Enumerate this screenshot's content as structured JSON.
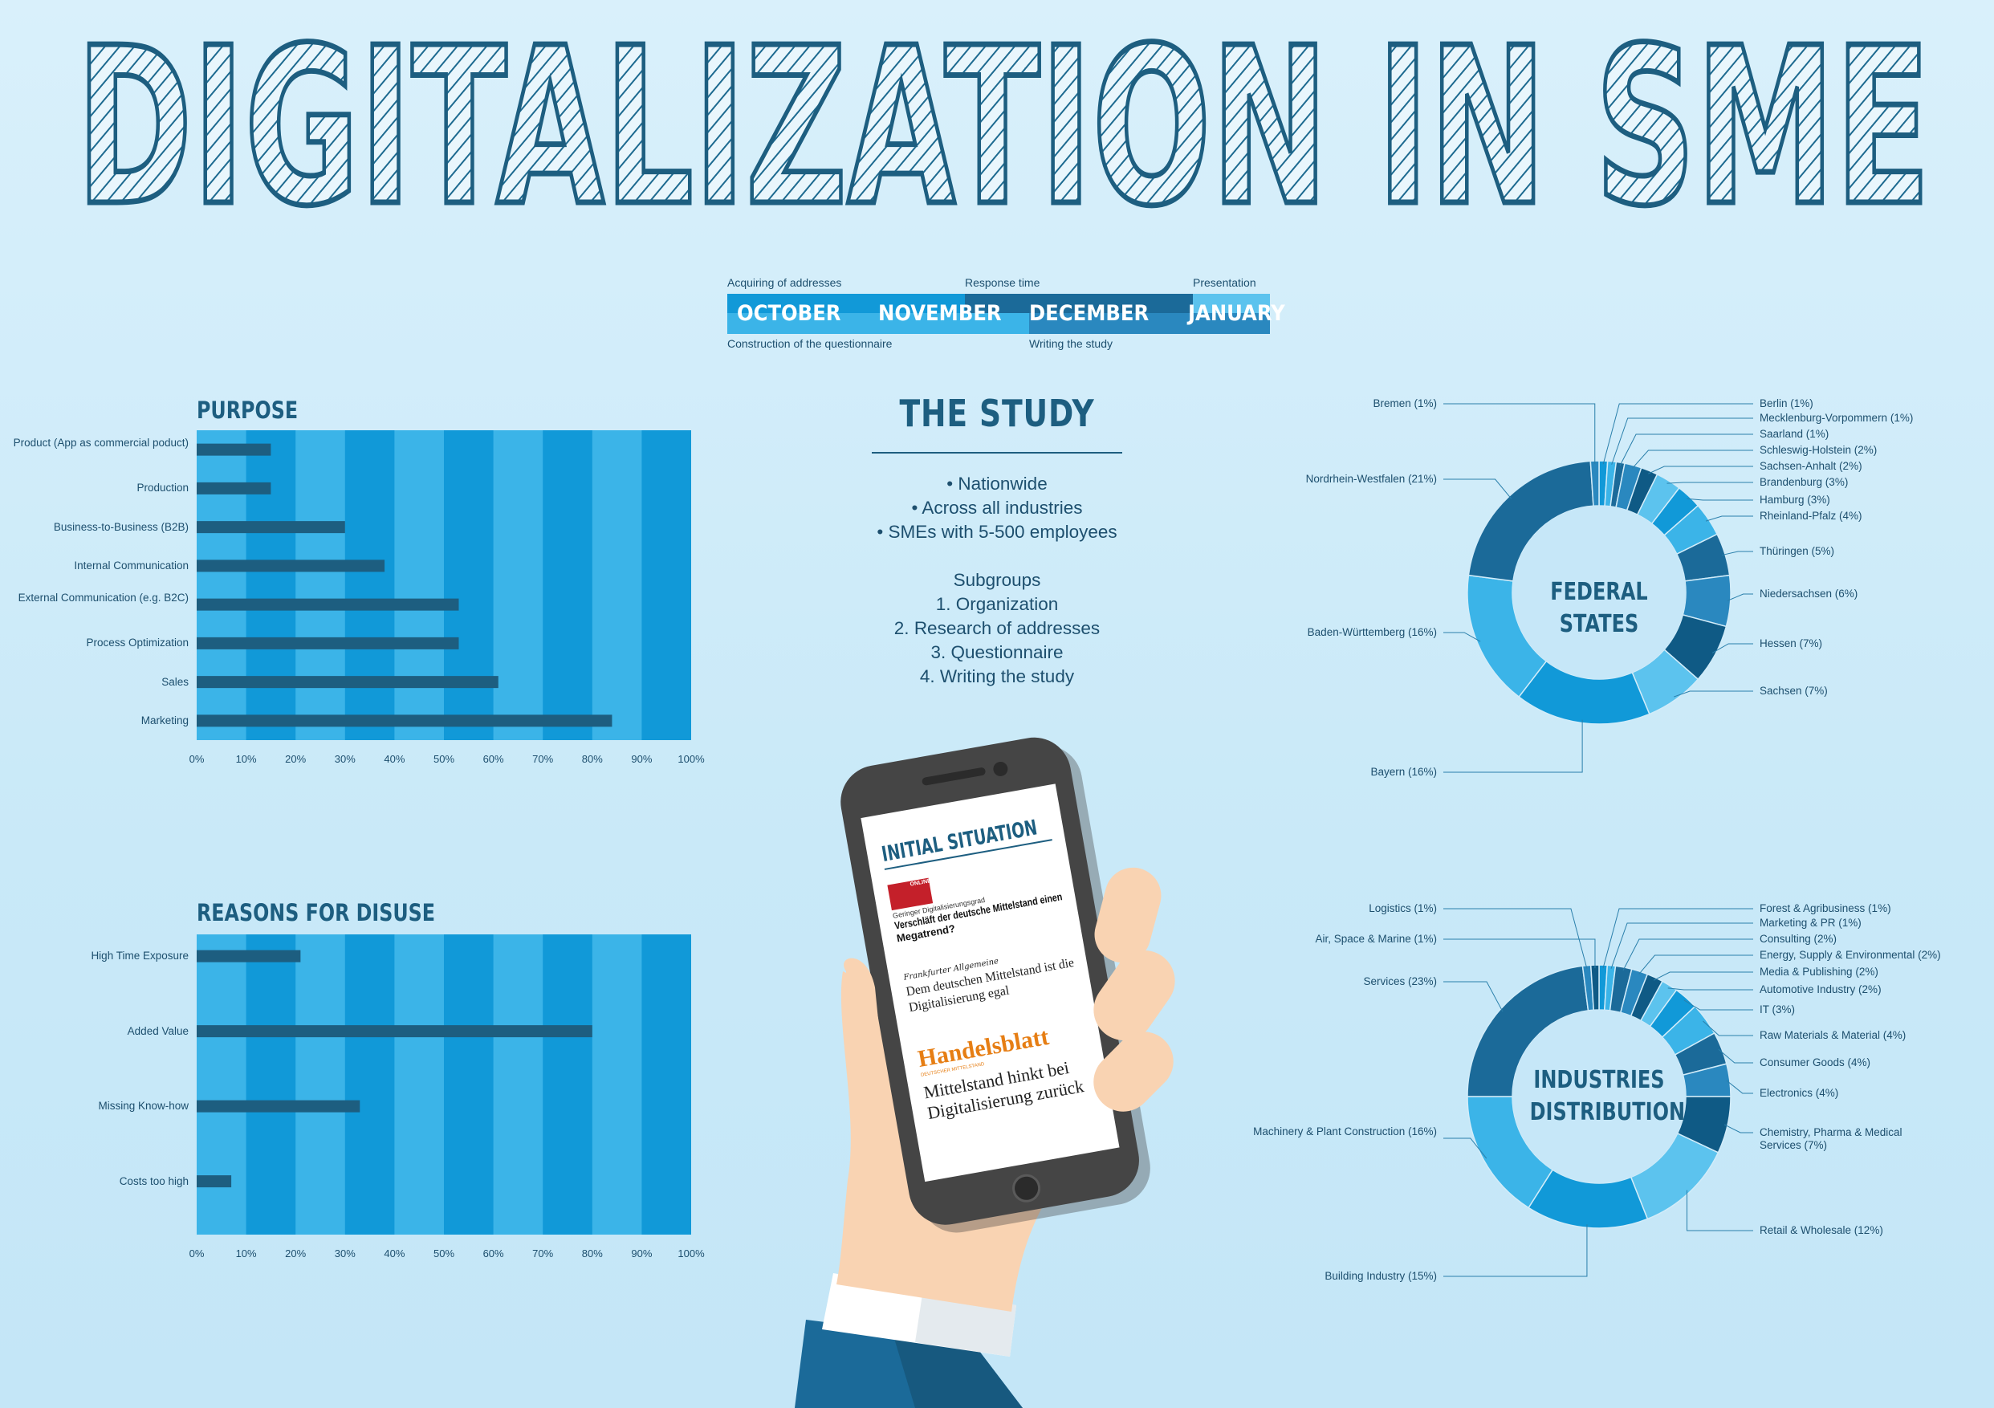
{
  "title": "DIGITALIZATION IN SME",
  "timeline": {
    "months": [
      "OCTOBER",
      "NOVEMBER",
      "DECEMBER",
      "JANUARY"
    ],
    "phases_top": [
      "Acquiring of addresses",
      "Response time",
      "Presentation"
    ],
    "phases_bottom": [
      "Construction of the questionnaire",
      "Writing the study"
    ]
  },
  "study": {
    "title": "THE STUDY",
    "bullets": [
      "• Nationwide",
      "• Across all industries",
      "• SMEs with 5-500 employees"
    ],
    "subgroups_title": "Subgroups",
    "subgroups": [
      "1. Organization",
      "2. Research of addresses",
      "3. Questionnaire",
      "4. Writing the study"
    ]
  },
  "phone": {
    "heading": "INITIAL SITUATION",
    "news1_source": "ONLINE",
    "news1_kicker": "Geringer Digitalisierungsgrad",
    "news1_headline_1": "Verschläft der deutsche Mittelstand einen",
    "news1_headline_2": "Megatrend?",
    "news2_source": "Frankfurter Allgemeine",
    "news2_headline_1": "Dem deutschen Mittelstand ist die",
    "news2_headline_2": "Digitalisierung egal",
    "news3_source": "Handelsblatt",
    "news3_sub": "DEUTSCHER MITTELSTAND",
    "news3_headline_1": "Mittelstand hinkt bei",
    "news3_headline_2": "Digitalisierung zurück"
  },
  "colors": {
    "title_stroke": "#1d5e80",
    "bar": "#1d5e80",
    "band_light": "#3bb4e8",
    "band_dark": "#1199d8",
    "donut_palette": [
      "#1199d8",
      "#3bb4e8",
      "#1b6a99",
      "#2a88bf",
      "#0f5a85",
      "#5cc3ee"
    ]
  },
  "chart_data": [
    {
      "type": "bar",
      "orientation": "horizontal",
      "title": "PURPOSE",
      "categories": [
        "Product (App as commercial poduct)",
        "Production",
        "Business-to-Business (B2B)",
        "Internal Communication",
        "External Communication (e.g. B2C)",
        "Process Optimization",
        "Sales",
        "Marketing"
      ],
      "values": [
        15,
        15,
        30,
        38,
        53,
        53,
        61,
        84
      ],
      "xlim": [
        0,
        100
      ],
      "xticks": [
        "0%",
        "10%",
        "20%",
        "30%",
        "40%",
        "50%",
        "60%",
        "70%",
        "80%",
        "90%",
        "100%"
      ]
    },
    {
      "type": "bar",
      "orientation": "horizontal",
      "title": "REASONS FOR DISUSE",
      "categories": [
        "High Time Exposure",
        "Added Value",
        "Missing Know-how",
        "Costs too high"
      ],
      "values": [
        21,
        80,
        33,
        7
      ],
      "xlim": [
        0,
        100
      ],
      "xticks": [
        "0%",
        "10%",
        "20%",
        "30%",
        "40%",
        "50%",
        "60%",
        "70%",
        "80%",
        "90%",
        "100%"
      ]
    },
    {
      "type": "pie",
      "donut": true,
      "title": "FEDERAL STATES",
      "labels": [
        "Berlin (1%)",
        "Mecklenburg-Vorpommern (1%)",
        "Saarland (1%)",
        "Schleswig-Holstein (2%)",
        "Sachsen-Anhalt (2%)",
        "Brandenburg (3%)",
        "Hamburg (3%)",
        "Rheinland-Pfalz (4%)",
        "Thüringen (5%)",
        "Niedersachsen (6%)",
        "Hessen (7%)",
        "Sachsen (7%)",
        "Bayern (16%)",
        "Baden-Württemberg (16%)",
        "Nordrhein-Westfalen (21%)",
        "Bremen (1%)"
      ],
      "values": [
        1,
        1,
        1,
        2,
        2,
        3,
        3,
        4,
        5,
        6,
        7,
        7,
        16,
        16,
        21,
        1
      ]
    },
    {
      "type": "pie",
      "donut": true,
      "title": "INDUSTRIES DISTRIBUTION",
      "labels": [
        "Forest & Agribusiness (1%)",
        "Marketing & PR (1%)",
        "Consulting (2%)",
        "Energy, Supply & Environmental (2%)",
        "Media & Publishing (2%)",
        "Automotive Industry (2%)",
        "IT (3%)",
        "Raw Materials & Material (4%)",
        "Consumer Goods (4%)",
        "Electronics (4%)",
        "Chemistry, Pharma & Medical Services (7%)",
        "Retail & Wholesale (12%)",
        "Building Industry (15%)",
        "Machinery & Plant Construction (16%)",
        "Services (23%)",
        "Logistics (1%)",
        "Air, Space & Marine  (1%)"
      ],
      "values": [
        1,
        1,
        2,
        2,
        2,
        2,
        3,
        4,
        4,
        4,
        7,
        12,
        15,
        16,
        23,
        1,
        1
      ]
    }
  ]
}
